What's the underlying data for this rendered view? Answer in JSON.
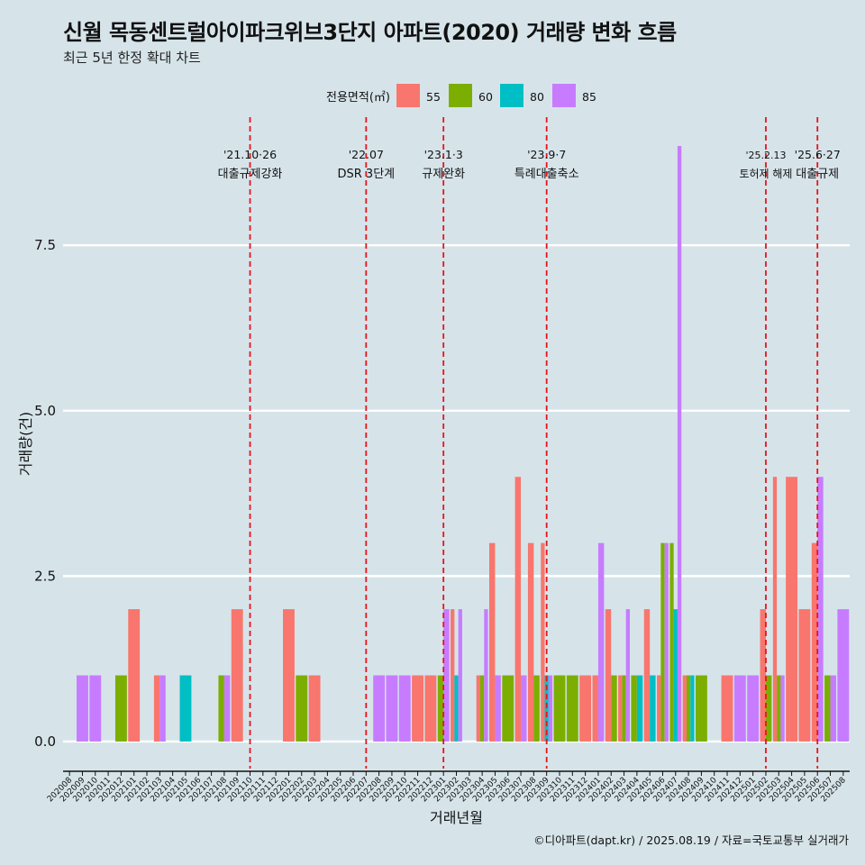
{
  "title": "신월 목동센트럴아이파크위브3단지 아파트(2020) 거래량 변화 흐름",
  "subtitle": "최근 5년 한정 확대 차트",
  "caption": "©디아파트(dapt.kr) / 2025.08.19 / 자료=국토교통부 실거래가",
  "chart_data": {
    "type": "bar",
    "xlabel": "거래년월",
    "ylabel": "거래량(건)",
    "ylim": [
      -0.3,
      9.3
    ],
    "yticks": [
      0.0,
      2.5,
      5.0,
      7.5
    ],
    "ytick_labels": [
      "0.0",
      "2.5",
      "5.0",
      "7.5"
    ],
    "legend": {
      "title": "전용면적(㎡)",
      "position": "top"
    },
    "series": [
      {
        "name": "55",
        "color": "#F8766D"
      },
      {
        "name": "60",
        "color": "#7CAE00"
      },
      {
        "name": "80",
        "color": "#00BFC4"
      },
      {
        "name": "85",
        "color": "#C77CFF"
      }
    ],
    "categories": [
      "202008",
      "202009",
      "202010",
      "202011",
      "202012",
      "202101",
      "202102",
      "202103",
      "202104",
      "202105",
      "202106",
      "202107",
      "202108",
      "202109",
      "202110",
      "202111",
      "202112",
      "202201",
      "202202",
      "202203",
      "202204",
      "202205",
      "202206",
      "202207",
      "202208",
      "202209",
      "202210",
      "202211",
      "202212",
      "202301",
      "202302",
      "202303",
      "202304",
      "202305",
      "202306",
      "202307",
      "202308",
      "202309",
      "202310",
      "202311",
      "202312",
      "202401",
      "202402",
      "202403",
      "202404",
      "202405",
      "202406",
      "202407",
      "202408",
      "202409",
      "202410",
      "202411",
      "202412",
      "202501",
      "202502",
      "202503",
      "202504",
      "202505",
      "202506",
      "202507",
      "202508"
    ],
    "bars": [
      {
        "month": "202009",
        "values": [
          1
        ]
      },
      {
        "month": "202010",
        "values": [
          1
        ]
      },
      {
        "month": "202012",
        "values": [
          1
        ]
      },
      {
        "month": "202101",
        "values": [
          2
        ]
      },
      {
        "month": "202103",
        "values": [
          1,
          1
        ]
      },
      {
        "month": "202105",
        "values": [
          1
        ]
      },
      {
        "month": "202108",
        "values": [
          1,
          1
        ]
      },
      {
        "month": "202109",
        "values": [
          2
        ]
      },
      {
        "month": "202201",
        "values": [
          2
        ]
      },
      {
        "month": "202202",
        "values": [
          1
        ]
      },
      {
        "month": "202203",
        "values": [
          1
        ]
      },
      {
        "month": "202208",
        "values": [
          1
        ]
      },
      {
        "month": "202209",
        "values": [
          1
        ]
      },
      {
        "month": "202210",
        "values": [
          1
        ]
      },
      {
        "month": "202211",
        "values": [
          1
        ]
      },
      {
        "month": "202212",
        "values": [
          1
        ]
      },
      {
        "month": "202301",
        "values": [
          1,
          2
        ]
      },
      {
        "month": "202302",
        "values": [
          2,
          1,
          2
        ]
      },
      {
        "month": "202304",
        "values": [
          1,
          1,
          2
        ]
      },
      {
        "month": "202305",
        "values": [
          3,
          1
        ]
      },
      {
        "month": "202306",
        "values": [
          1
        ]
      },
      {
        "month": "202307",
        "values": [
          4,
          1
        ]
      },
      {
        "month": "202308",
        "values": [
          3,
          1
        ]
      },
      {
        "month": "202309",
        "values": [
          3,
          1,
          1
        ]
      },
      {
        "month": "202310",
        "values": [
          1
        ]
      },
      {
        "month": "202311",
        "values": [
          1
        ]
      },
      {
        "month": "202312",
        "values": [
          1
        ]
      },
      {
        "month": "202401",
        "values": [
          1,
          3
        ]
      },
      {
        "month": "202402",
        "values": [
          2,
          1
        ]
      },
      {
        "month": "202403",
        "values": [
          1,
          1,
          2
        ]
      },
      {
        "month": "202404",
        "values": [
          1,
          1
        ]
      },
      {
        "month": "202405",
        "values": [
          2,
          1
        ]
      },
      {
        "month": "202406",
        "values": [
          1,
          3,
          3
        ]
      },
      {
        "month": "202407",
        "values": [
          3,
          2,
          9
        ]
      },
      {
        "month": "202408",
        "values": [
          1,
          1,
          1
        ]
      },
      {
        "month": "202409",
        "values": [
          1
        ]
      },
      {
        "month": "202411",
        "values": [
          1
        ]
      },
      {
        "month": "202412",
        "values": [
          1
        ]
      },
      {
        "month": "202501",
        "values": [
          1
        ]
      },
      {
        "month": "202502",
        "values": [
          2,
          1
        ]
      },
      {
        "month": "202503",
        "values": [
          4,
          1,
          1
        ]
      },
      {
        "month": "202504",
        "values": [
          4
        ]
      },
      {
        "month": "202505",
        "values": [
          2
        ]
      },
      {
        "month": "202506",
        "values": [
          3,
          4
        ]
      },
      {
        "month": "202507",
        "values": [
          1,
          1
        ]
      },
      {
        "month": "202508",
        "values": [
          2
        ]
      }
    ],
    "bar_series": [
      [
        "85"
      ],
      [
        "85"
      ],
      [
        "60"
      ],
      [
        "55"
      ],
      [
        "55",
        "85"
      ],
      [
        "80"
      ],
      [
        "60",
        "85"
      ],
      [
        "55"
      ],
      [
        "55"
      ],
      [
        "60"
      ],
      [
        "55"
      ],
      [
        "85"
      ],
      [
        "85"
      ],
      [
        "85"
      ],
      [
        "55"
      ],
      [
        "55"
      ],
      [
        "60",
        "85"
      ],
      [
        "55",
        "80",
        "85"
      ],
      [
        "55",
        "60",
        "85"
      ],
      [
        "55",
        "85"
      ],
      [
        "60"
      ],
      [
        "55",
        "85"
      ],
      [
        "55",
        "60"
      ],
      [
        "55",
        "80",
        "85"
      ],
      [
        "60"
      ],
      [
        "60"
      ],
      [
        "55"
      ],
      [
        "55",
        "85"
      ],
      [
        "55",
        "60"
      ],
      [
        "55",
        "60",
        "85"
      ],
      [
        "60",
        "80"
      ],
      [
        "55",
        "80"
      ],
      [
        "55",
        "60",
        "85"
      ],
      [
        "60",
        "80",
        "85"
      ],
      [
        "55",
        "60",
        "80"
      ],
      [
        "60"
      ],
      [
        "55"
      ],
      [
        "85"
      ],
      [
        "85"
      ],
      [
        "55",
        "60"
      ],
      [
        "55",
        "60",
        "85"
      ],
      [
        "55"
      ],
      [
        "55"
      ],
      [
        "55",
        "85"
      ],
      [
        "60",
        "85"
      ],
      [
        "85"
      ]
    ],
    "events": [
      {
        "month": "202110",
        "date": "'21.10·26",
        "label": "대출규제강화"
      },
      {
        "month": "202207",
        "date": "'22.07",
        "label": "DSR 3단계"
      },
      {
        "month": "202301",
        "date": "'23.1·3",
        "label": "규제완화"
      },
      {
        "month": "202309",
        "date": "'23.9·7",
        "label": "특례대출축소"
      },
      {
        "month": "202502",
        "date": "'25.2.13",
        "label": "토허제 해제"
      },
      {
        "month": "202506",
        "date": "'25.6·27",
        "label": "대출규제"
      }
    ]
  }
}
